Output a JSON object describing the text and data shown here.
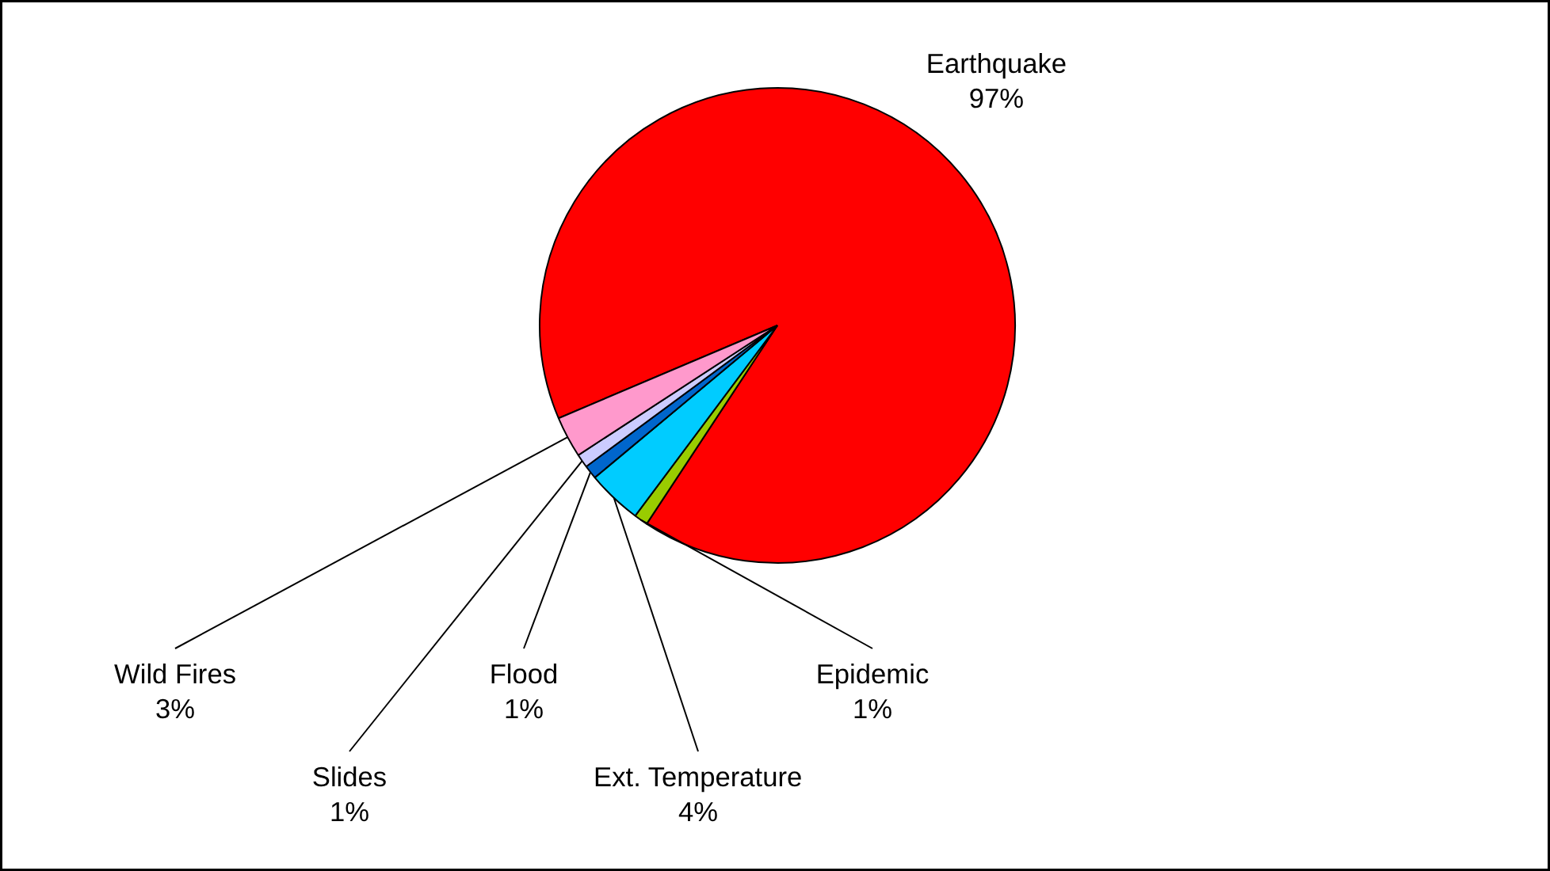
{
  "chart_data": {
    "type": "pie",
    "categories": [
      "Earthquake",
      "Epidemic",
      "Ext. Temperature",
      "Flood",
      "Slides",
      "Wild Fires"
    ],
    "values": [
      97,
      1,
      4,
      1,
      1,
      3
    ],
    "colors": [
      "#ff0000",
      "#99cc00",
      "#00ccff",
      "#0066cc",
      "#ccccff",
      "#ff99cc"
    ],
    "value_labels": [
      "97%",
      "1%",
      "4%",
      "1%",
      "1%",
      "3%"
    ]
  }
}
